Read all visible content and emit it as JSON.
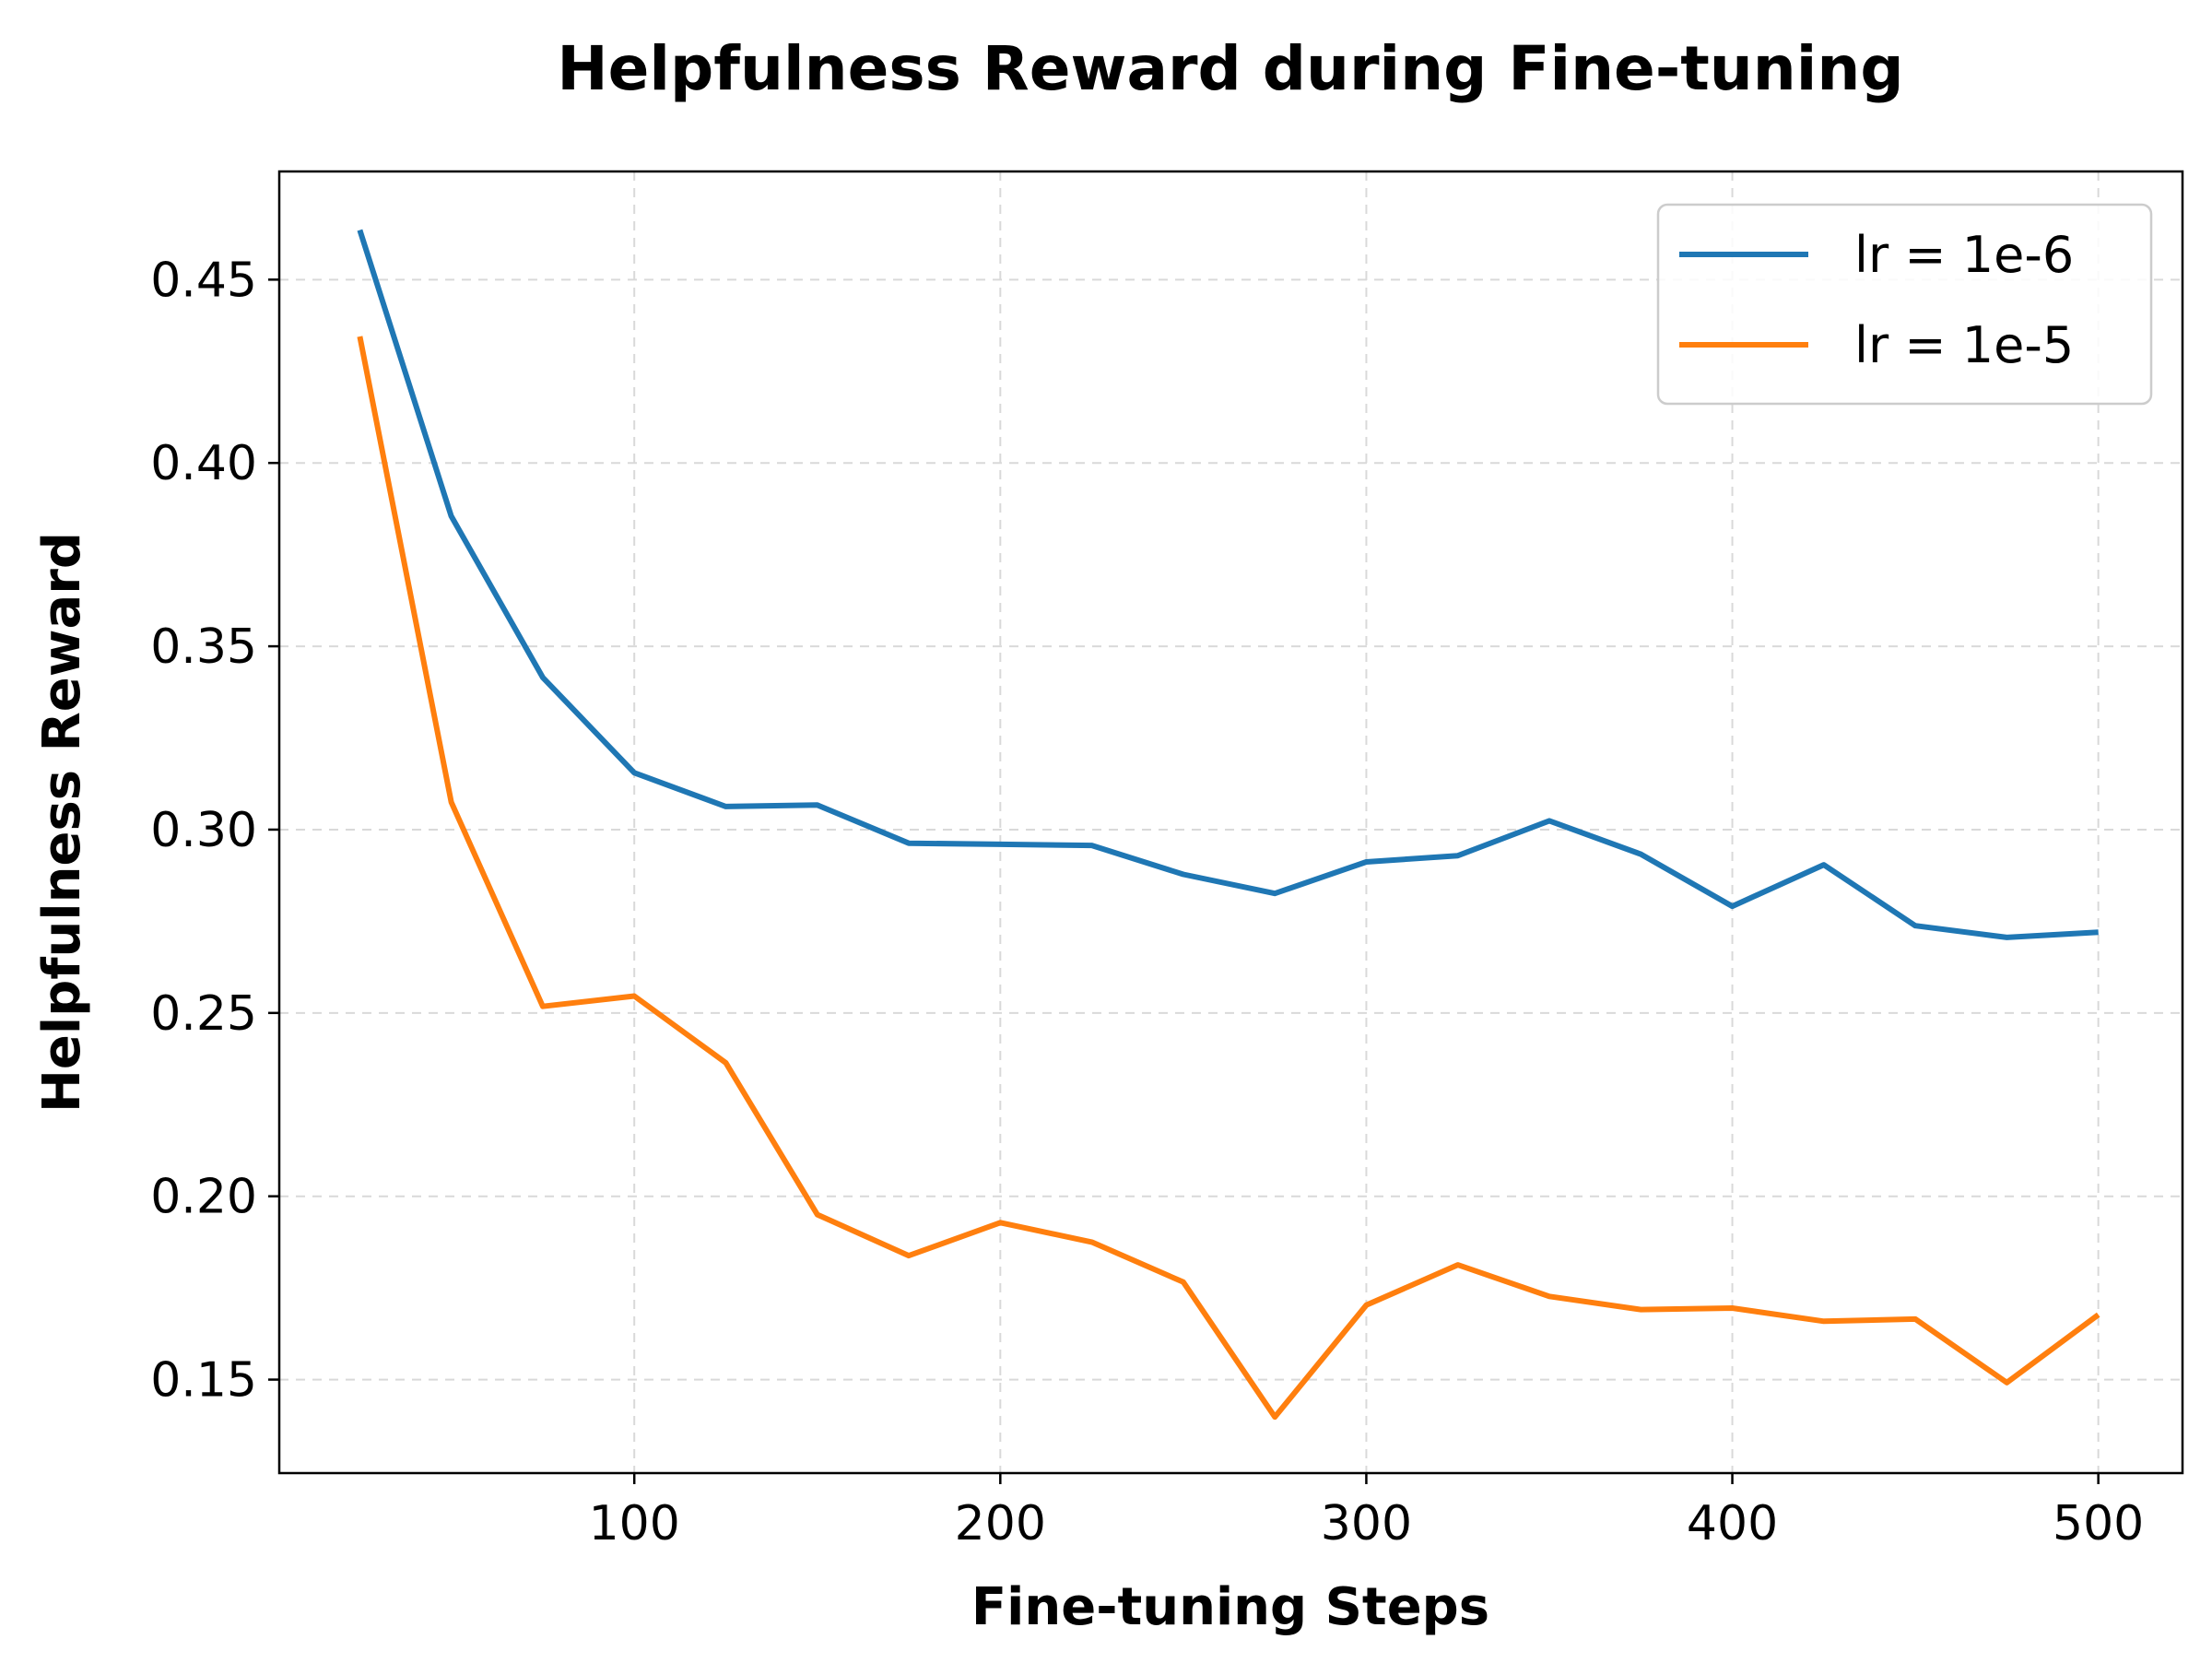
{
  "chart_data": {
    "type": "line",
    "title": "Helpfulness Reward during Fine-tuning",
    "xlabel": "Fine-tuning Steps",
    "ylabel": "Helpfulness Reward",
    "xlim": [
      3,
      523
    ],
    "ylim": [
      0.1245,
      0.4795
    ],
    "xticks": [
      100,
      200,
      300,
      400,
      500
    ],
    "xtick_labels": [
      "100",
      "200",
      "300",
      "400",
      "500"
    ],
    "yticks": [
      0.15,
      0.2,
      0.25,
      0.3,
      0.35,
      0.4,
      0.45
    ],
    "ytick_labels": [
      "0.15",
      "0.20",
      "0.25",
      "0.30",
      "0.35",
      "0.40",
      "0.45"
    ],
    "grid": true,
    "legend_position": "top-right",
    "x": [
      25,
      50,
      75,
      100,
      125,
      150,
      175,
      200,
      225,
      250,
      275,
      300,
      325,
      350,
      375,
      400,
      425,
      450,
      475,
      500
    ],
    "series": [
      {
        "name": "lr = 1e-6",
        "color": "#1f77b4",
        "values": [
          0.4635,
          0.3855,
          0.3415,
          0.3155,
          0.3063,
          0.3067,
          0.2963,
          0.296,
          0.2957,
          0.2878,
          0.2826,
          0.2912,
          0.2929,
          0.3024,
          0.2933,
          0.2791,
          0.2904,
          0.2738,
          0.2706,
          0.272
        ]
      },
      {
        "name": "lr = 1e-5",
        "color": "#ff7f0e",
        "values": [
          0.4345,
          0.3075,
          0.2518,
          0.2546,
          0.2364,
          0.195,
          0.1838,
          0.1928,
          0.1875,
          0.1766,
          0.1398,
          0.1703,
          0.1813,
          0.1727,
          0.1691,
          0.1695,
          0.1659,
          0.1665,
          0.1492,
          0.1677
        ]
      }
    ]
  }
}
